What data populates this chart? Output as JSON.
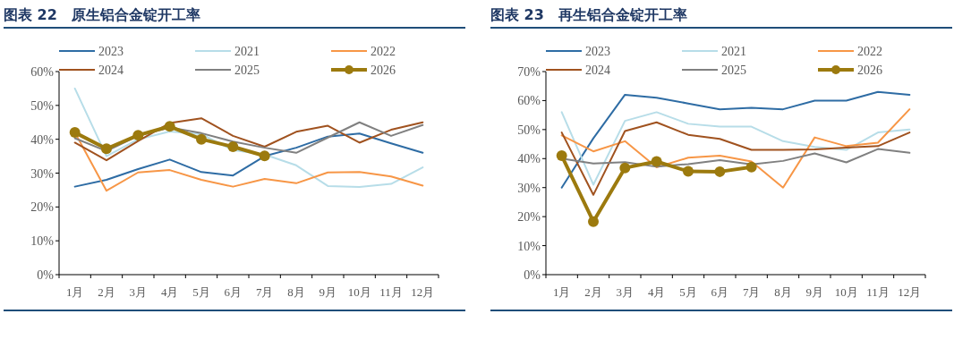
{
  "chart_data": [
    {
      "type": "line",
      "title": "图表 22　原生铝合金锭开工率",
      "categories": [
        "1月",
        "2月",
        "3月",
        "4月",
        "5月",
        "6月",
        "7月",
        "8月",
        "9月",
        "10月",
        "11月",
        "12月"
      ],
      "ylim": [
        0,
        60
      ],
      "yticks": [
        {
          "value": 0,
          "label": "0%"
        },
        {
          "value": 10,
          "label": "10%"
        },
        {
          "value": 20,
          "label": "20%"
        },
        {
          "value": 30,
          "label": "30%"
        },
        {
          "value": 40,
          "label": "40%"
        },
        {
          "value": 50,
          "label": "50%"
        },
        {
          "value": 60,
          "label": "60%"
        }
      ],
      "legend": "top",
      "grid": false,
      "series": [
        {
          "name": "2023",
          "color": "#2e6ca4",
          "values": [
            26,
            28,
            31.2,
            34,
            30.3,
            29.3,
            35,
            37.5,
            40.8,
            41.7,
            38.8,
            36
          ]
        },
        {
          "name": "2021",
          "color": "#b7dde8",
          "values": [
            55,
            35,
            40,
            42.3,
            41.5,
            36.8,
            35.5,
            32.3,
            26.2,
            25.9,
            26.8,
            31.7
          ]
        },
        {
          "name": "2022",
          "color": "#f79646",
          "values": [
            42,
            24.8,
            30.2,
            30.9,
            28,
            26,
            28.3,
            27,
            30.2,
            30.3,
            29,
            26.3
          ]
        },
        {
          "name": "2024",
          "color": "#a0521f",
          "values": [
            39,
            33.8,
            39.5,
            44.8,
            46.2,
            41,
            37.8,
            42.2,
            44,
            39,
            42.8,
            45
          ]
        },
        {
          "name": "2025",
          "color": "#808080",
          "values": [
            40.3,
            36.5,
            41,
            43.5,
            41.8,
            39.3,
            37.5,
            36,
            40.5,
            45,
            41,
            44.2
          ]
        },
        {
          "name": "2026",
          "color": "#9c7a0e",
          "marker": "circle",
          "values": [
            42,
            37.2,
            41.2,
            43.8,
            40,
            37.8,
            35.1,
            null,
            null,
            null,
            null,
            null
          ]
        }
      ]
    },
    {
      "type": "line",
      "title": "图表 23　再生铝合金锭开工率",
      "categories": [
        "1月",
        "2月",
        "3月",
        "4月",
        "5月",
        "6月",
        "7月",
        "8月",
        "9月",
        "10月",
        "11月",
        "12月"
      ],
      "ylim": [
        0,
        70
      ],
      "yticks": [
        {
          "value": 0,
          "label": "0%"
        },
        {
          "value": 10,
          "label": "10%"
        },
        {
          "value": 20,
          "label": "20%"
        },
        {
          "value": 30,
          "label": "30%"
        },
        {
          "value": 40,
          "label": "40%"
        },
        {
          "value": 50,
          "label": "50%"
        },
        {
          "value": 60,
          "label": "60%"
        },
        {
          "value": 70,
          "label": "70%"
        }
      ],
      "legend": "top",
      "grid": false,
      "series": [
        {
          "name": "2023",
          "color": "#2e6ca4",
          "values": [
            30,
            47,
            62,
            61,
            59,
            57,
            57.5,
            57,
            60,
            60,
            63,
            62
          ]
        },
        {
          "name": "2021",
          "color": "#b7dde8",
          "values": [
            56,
            31,
            53,
            56,
            52,
            51,
            51,
            46,
            44,
            43,
            49,
            50
          ]
        },
        {
          "name": "2022",
          "color": "#f79646",
          "values": [
            48,
            42.5,
            46,
            37,
            40.3,
            41,
            39,
            30,
            47.3,
            44.3,
            45.5,
            57
          ]
        },
        {
          "name": "2024",
          "color": "#a0521f",
          "values": [
            49,
            27.5,
            49.5,
            52.5,
            48.2,
            46.8,
            43,
            43,
            43.2,
            43.8,
            44.3,
            49
          ]
        },
        {
          "name": "2025",
          "color": "#808080",
          "values": [
            40,
            38.3,
            38.8,
            37.2,
            38.1,
            39.5,
            38,
            39.2,
            41.8,
            38.7,
            43.3,
            42
          ]
        },
        {
          "name": "2026",
          "color": "#9c7a0e",
          "marker": "circle",
          "values": [
            41,
            18.3,
            36.8,
            39,
            35.6,
            35.5,
            37.1,
            null,
            null,
            null,
            null,
            null
          ]
        }
      ]
    }
  ]
}
